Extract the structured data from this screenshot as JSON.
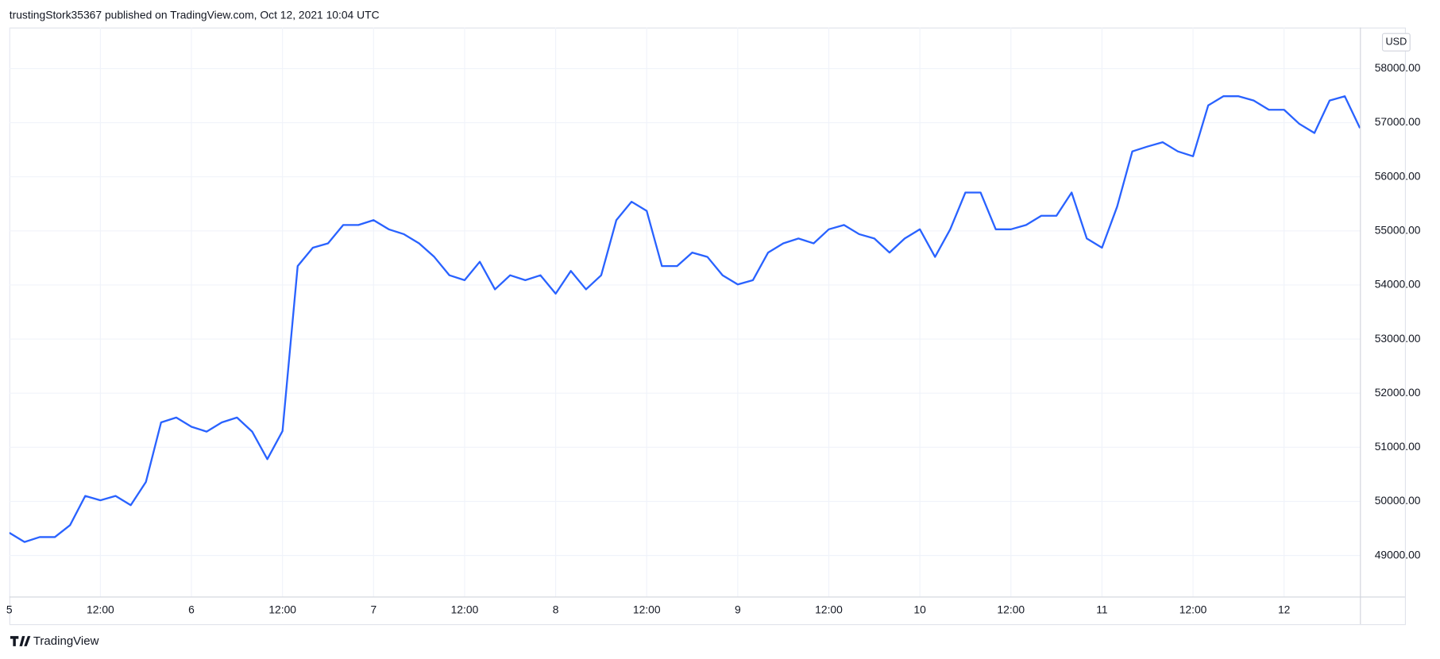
{
  "header": "trustingStork35367 published on TradingView.com, Oct 12, 2021 10:04 UTC",
  "currency": "USD",
  "footer": "TradingView",
  "chart_data": {
    "type": "line",
    "color": "#2962ff",
    "grid": true,
    "x": [
      "Oct 5 00:00",
      "Oct 5 02:00",
      "Oct 5 04:00",
      "Oct 5 06:00",
      "Oct 5 08:00",
      "Oct 5 10:00",
      "Oct 5 12:00",
      "Oct 5 14:00",
      "Oct 5 16:00",
      "Oct 5 18:00",
      "Oct 5 20:00",
      "Oct 5 22:00",
      "Oct 6 00:00",
      "Oct 6 02:00",
      "Oct 6 04:00",
      "Oct 6 06:00",
      "Oct 6 08:00",
      "Oct 6 10:00",
      "Oct 6 12:00",
      "Oct 6 14:00",
      "Oct 6 16:00",
      "Oct 6 18:00",
      "Oct 6 20:00",
      "Oct 6 22:00",
      "Oct 7 00:00",
      "Oct 7 02:00",
      "Oct 7 04:00",
      "Oct 7 06:00",
      "Oct 7 08:00",
      "Oct 7 10:00",
      "Oct 7 12:00",
      "Oct 7 14:00",
      "Oct 7 16:00",
      "Oct 7 18:00",
      "Oct 7 20:00",
      "Oct 7 22:00",
      "Oct 8 00:00",
      "Oct 8 02:00",
      "Oct 8 04:00",
      "Oct 8 06:00",
      "Oct 8 08:00",
      "Oct 8 10:00",
      "Oct 8 12:00",
      "Oct 8 14:00",
      "Oct 8 16:00",
      "Oct 8 18:00",
      "Oct 8 20:00",
      "Oct 8 22:00",
      "Oct 9 00:00",
      "Oct 9 02:00",
      "Oct 9 04:00",
      "Oct 9 06:00",
      "Oct 9 08:00",
      "Oct 9 10:00",
      "Oct 9 12:00",
      "Oct 9 14:00",
      "Oct 9 16:00",
      "Oct 9 18:00",
      "Oct 9 20:00",
      "Oct 9 22:00",
      "Oct 10 00:00",
      "Oct 10 02:00",
      "Oct 10 04:00",
      "Oct 10 06:00",
      "Oct 10 08:00",
      "Oct 10 10:00",
      "Oct 10 12:00",
      "Oct 10 14:00",
      "Oct 10 16:00",
      "Oct 10 18:00",
      "Oct 10 20:00",
      "Oct 10 22:00",
      "Oct 11 00:00",
      "Oct 11 02:00",
      "Oct 11 04:00",
      "Oct 11 06:00",
      "Oct 11 08:00",
      "Oct 11 10:00",
      "Oct 11 12:00",
      "Oct 11 14:00",
      "Oct 11 16:00",
      "Oct 11 18:00",
      "Oct 11 20:00",
      "Oct 11 22:00",
      "Oct 12 00:00",
      "Oct 12 02:00",
      "Oct 12 04:00",
      "Oct 12 06:00",
      "Oct 12 08:00",
      "Oct 12 10:00"
    ],
    "values": [
      49420,
      49250,
      49340,
      49340,
      49560,
      50100,
      50020,
      50100,
      49930,
      50360,
      51460,
      51550,
      51380,
      51290,
      51460,
      51550,
      51290,
      50780,
      51300,
      54350,
      54690,
      54770,
      55110,
      55110,
      55200,
      55030,
      54940,
      54770,
      54520,
      54180,
      54090,
      54430,
      53920,
      54180,
      54090,
      54180,
      53840,
      54260,
      53920,
      54180,
      55200,
      55540,
      55370,
      54350,
      54350,
      54600,
      54520,
      54180,
      54010,
      54090,
      54600,
      54770,
      54860,
      54770,
      55030,
      55110,
      54940,
      54860,
      54600,
      54860,
      55030,
      54520,
      55030,
      55710,
      55710,
      55030,
      55030,
      55110,
      55280,
      55280,
      55710,
      54860,
      54690,
      55450,
      56470,
      56560,
      56640,
      56470,
      56380,
      57320,
      57490,
      57490,
      57410,
      57240,
      57240,
      56980,
      56810,
      57410,
      57490,
      56900
    ],
    "xlim": [
      "Oct 5 00:00",
      "Oct 12 10:00"
    ],
    "xticks": [
      {
        "value": "Oct 5 00:00",
        "label": "5"
      },
      {
        "value": "Oct 5 12:00",
        "label": "12:00"
      },
      {
        "value": "Oct 6 00:00",
        "label": "6"
      },
      {
        "value": "Oct 6 12:00",
        "label": "12:00"
      },
      {
        "value": "Oct 7 00:00",
        "label": "7"
      },
      {
        "value": "Oct 7 12:00",
        "label": "12:00"
      },
      {
        "value": "Oct 8 00:00",
        "label": "8"
      },
      {
        "value": "Oct 8 12:00",
        "label": "12:00"
      },
      {
        "value": "Oct 9 00:00",
        "label": "9"
      },
      {
        "value": "Oct 9 12:00",
        "label": "12:00"
      },
      {
        "value": "Oct 10 00:00",
        "label": "10"
      },
      {
        "value": "Oct 10 12:00",
        "label": "12:00"
      },
      {
        "value": "Oct 11 00:00",
        "label": "11"
      },
      {
        "value": "Oct 11 12:00",
        "label": "12:00"
      },
      {
        "value": "Oct 12 00:00",
        "label": "12"
      }
    ],
    "ylim": [
      48240,
      58760
    ],
    "yticks": [
      {
        "value": 49000,
        "label": "49000.00"
      },
      {
        "value": 50000,
        "label": "50000.00"
      },
      {
        "value": 51000,
        "label": "51000.00"
      },
      {
        "value": 52000,
        "label": "52000.00"
      },
      {
        "value": 53000,
        "label": "53000.00"
      },
      {
        "value": 54000,
        "label": "54000.00"
      },
      {
        "value": 55000,
        "label": "55000.00"
      },
      {
        "value": 56000,
        "label": "56000.00"
      },
      {
        "value": 57000,
        "label": "57000.00"
      },
      {
        "value": 58000,
        "label": "58000.00"
      }
    ]
  }
}
